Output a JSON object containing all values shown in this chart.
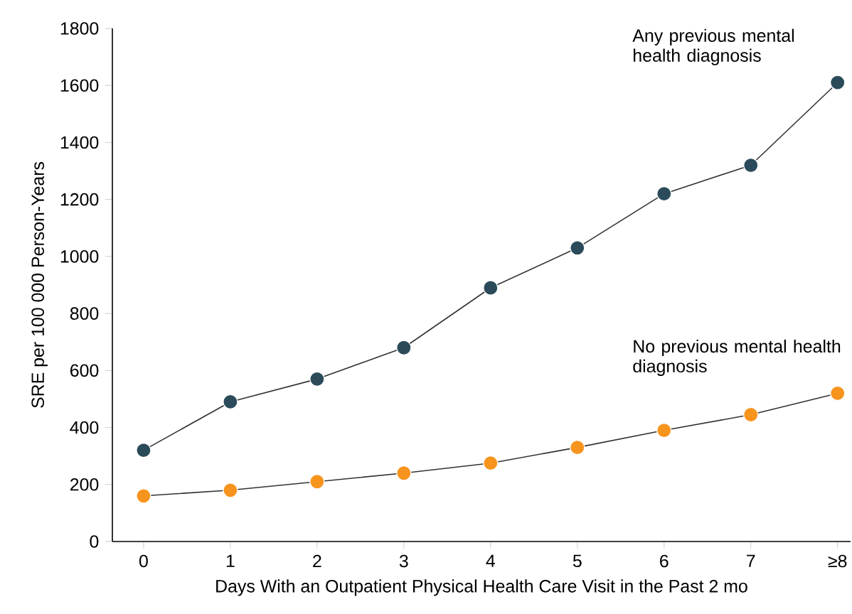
{
  "chart_data": {
    "type": "line",
    "xlabel": "Days With an Outpatient Physical Health Care Visit in the Past 2 mo",
    "ylabel": "SRE per 100 000 Person-Years",
    "categories": [
      "0",
      "1",
      "2",
      "3",
      "4",
      "5",
      "6",
      "7",
      "≥8"
    ],
    "ylim": [
      0,
      1800
    ],
    "yticks": [
      0,
      200,
      400,
      600,
      800,
      1000,
      1200,
      1400,
      1600,
      1800
    ],
    "marker": "circle",
    "grid": false,
    "legend": false,
    "series": [
      {
        "name": "Any previous mental health diagnosis",
        "color": "#2b4b5a",
        "values": [
          320,
          490,
          570,
          680,
          890,
          1030,
          1220,
          1320,
          1610
        ]
      },
      {
        "name": "No previous mental health diagnosis",
        "color": "#f7941d",
        "values": [
          160,
          180,
          210,
          240,
          275,
          330,
          390,
          445,
          520
        ]
      }
    ]
  }
}
